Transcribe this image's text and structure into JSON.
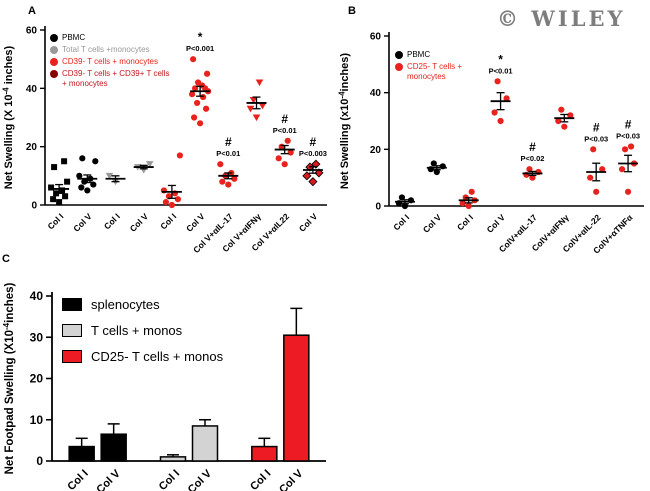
{
  "watermark": "© WILEY",
  "chart_data": [
    {
      "panel": "A",
      "type": "scatter",
      "ylabel_parts": [
        "Net Swelling (X 10",
        "-4",
        " inches)"
      ],
      "ylim": [
        0,
        60
      ],
      "yticks": [
        0,
        20,
        40,
        60
      ],
      "legend": [
        {
          "label": "PBMC",
          "color": "#000000",
          "text_color": "#000000"
        },
        {
          "label": "Total T cells +monocytes",
          "color": "#999999",
          "text_color": "#999999"
        },
        {
          "label": "CD39- T cells + monocytes",
          "color": "#e8231d",
          "text_color": "#e8231d"
        },
        {
          "label": "CD39- T cells + CD39+ T cells + monocytes",
          "color": "#8b0000",
          "text_color": "#c4161c"
        }
      ],
      "groups": [
        {
          "x_label": "Col I",
          "marker": "square",
          "color": "#000000",
          "values": [
            1,
            2,
            3,
            4,
            5,
            6,
            8,
            13,
            15
          ],
          "mean": 5.5,
          "sem": 1.5,
          "sig": "",
          "p": ""
        },
        {
          "x_label": "Col V",
          "marker": "circle",
          "color": "#000000",
          "values": [
            5,
            6,
            7,
            8,
            9,
            10,
            15,
            16
          ],
          "mean": 9,
          "sem": 1.3,
          "sig": "",
          "p": ""
        },
        {
          "x_label": "Col I",
          "marker": "triangle-down",
          "color": "#999999",
          "values": [
            8,
            10
          ],
          "mean": 9,
          "sem": 1,
          "sig": "",
          "p": ""
        },
        {
          "x_label": "Col V",
          "marker": "triangle-down",
          "color": "#999999",
          "values": [
            12,
            13,
            14
          ],
          "mean": 13,
          "sem": 0.6,
          "sig": "",
          "p": ""
        },
        {
          "x_label": "Col I",
          "marker": "circle",
          "color": "#e8231d",
          "values": [
            0,
            1,
            2,
            3,
            4,
            5,
            17
          ],
          "mean": 4.5,
          "sem": 2.2,
          "sig": "",
          "p": ""
        },
        {
          "x_label": "Col V",
          "marker": "circle",
          "color": "#e8231d",
          "values": [
            28,
            30,
            33,
            35,
            37,
            38,
            39,
            40,
            40,
            41,
            42,
            45,
            50
          ],
          "mean": 39,
          "sem": 1.7,
          "sig": "*",
          "p": "P<0.001"
        },
        {
          "x_label": "Col V+αIL-17",
          "marker": "circle",
          "color": "#e8231d",
          "values": [
            7,
            8,
            9,
            10,
            11,
            14
          ],
          "mean": 10,
          "sem": 1,
          "sig": "#",
          "p": "P<0.01"
        },
        {
          "x_label": "Col V+αIFNγ",
          "marker": "triangle-down",
          "color": "#e8231d",
          "values": [
            30,
            33,
            34,
            36,
            42
          ],
          "mean": 35,
          "sem": 2,
          "sig": "",
          "p": ""
        },
        {
          "x_label": "Col V+αIL22",
          "marker": "circle",
          "color": "#e8231d",
          "values": [
            14,
            16,
            18,
            20,
            22
          ],
          "mean": 19,
          "sem": 1.4,
          "sig": "#",
          "p": "P<0.01"
        },
        {
          "x_label": "Col V",
          "marker": "diamond",
          "color": "#d71920",
          "values": [
            8,
            10,
            11,
            13,
            14
          ],
          "mean": 12,
          "sem": 1.1,
          "sig": "#",
          "p": "P<0.003"
        }
      ]
    },
    {
      "panel": "B",
      "type": "scatter",
      "ylabel_parts": [
        "Net Swelling (x10",
        "-4",
        "inches)"
      ],
      "ylim": [
        0,
        60
      ],
      "yticks": [
        0,
        20,
        40,
        60
      ],
      "legend": [
        {
          "label": "PBMC",
          "color": "#000000",
          "text_color": "#000000"
        },
        {
          "label": "CD25- T cells + monocytes",
          "color": "#e8231d",
          "text_color": "#e8231d"
        }
      ],
      "groups": [
        {
          "x_label": "Col I",
          "marker": "circle",
          "color": "#000000",
          "values": [
            0,
            1,
            2,
            3
          ],
          "mean": 1.5,
          "sem": 0.7,
          "sig": "",
          "p": ""
        },
        {
          "x_label": "Col V",
          "marker": "circle",
          "color": "#000000",
          "values": [
            12,
            13,
            14,
            15
          ],
          "mean": 13.5,
          "sem": 0.7,
          "sig": "",
          "p": ""
        },
        {
          "x_label": "Col I",
          "marker": "circle",
          "color": "#e8231d",
          "values": [
            0,
            1,
            2,
            3,
            5
          ],
          "mean": 2,
          "sem": 0.9,
          "sig": "",
          "p": ""
        },
        {
          "x_label": "Col V",
          "marker": "circle",
          "color": "#e8231d",
          "values": [
            30,
            33,
            38,
            44
          ],
          "mean": 37,
          "sem": 3,
          "sig": "*",
          "p": "P<0.01"
        },
        {
          "x_label": "ColV+αIL-17",
          "marker": "circle",
          "color": "#e8231d",
          "values": [
            10,
            11,
            12,
            13
          ],
          "mean": 11.5,
          "sem": 0.7,
          "sig": "#",
          "p": "P<0.02"
        },
        {
          "x_label": "ColV+αIFNγ",
          "marker": "circle",
          "color": "#e8231d",
          "values": [
            28,
            30,
            32,
            34
          ],
          "mean": 31,
          "sem": 1.3,
          "sig": "",
          "p": ""
        },
        {
          "x_label": "ColV+αIL-22",
          "marker": "circle",
          "color": "#e8231d",
          "values": [
            5,
            10,
            13,
            20
          ],
          "mean": 12,
          "sem": 3.1,
          "sig": "#",
          "p": "P<0.03"
        },
        {
          "x_label": "ColV+αTNFα",
          "marker": "circle",
          "color": "#e8231d",
          "values": [
            5,
            13,
            15,
            20,
            21
          ],
          "mean": 15,
          "sem": 2.9,
          "sig": "#",
          "p": "P<0.03"
        }
      ]
    },
    {
      "panel": "C",
      "type": "bar",
      "ylabel_parts": [
        "Net Footpad Swelling (X10",
        "-4",
        "inches)"
      ],
      "ylim": [
        0,
        40
      ],
      "yticks": [
        0,
        10,
        20,
        30,
        40
      ],
      "legend": [
        {
          "label": "splenocytes",
          "color": "#000000",
          "text_color": "#000000"
        },
        {
          "label": "T cells + monos",
          "color": "#d3d3d3",
          "text_color": "#000000"
        },
        {
          "label": "CD25- T cells + monos",
          "color": "#ed1c24",
          "text_color": "#000000"
        }
      ],
      "pairs": [
        {
          "series": "splenocytes",
          "color": "#000000",
          "categories": [
            "Col I",
            "Col V"
          ],
          "values": [
            3.5,
            6.5
          ],
          "errors": [
            2,
            2.5
          ]
        },
        {
          "series": "T cells + monos",
          "color": "#d3d3d3",
          "categories": [
            "Col I",
            "Col V"
          ],
          "values": [
            1,
            8.5
          ],
          "errors": [
            0.5,
            1.5
          ]
        },
        {
          "series": "CD25- T cells + monos",
          "color": "#ed1c24",
          "categories": [
            "Col I",
            "Col V"
          ],
          "values": [
            3.5,
            30.5
          ],
          "errors": [
            2,
            6.5
          ]
        }
      ]
    }
  ]
}
